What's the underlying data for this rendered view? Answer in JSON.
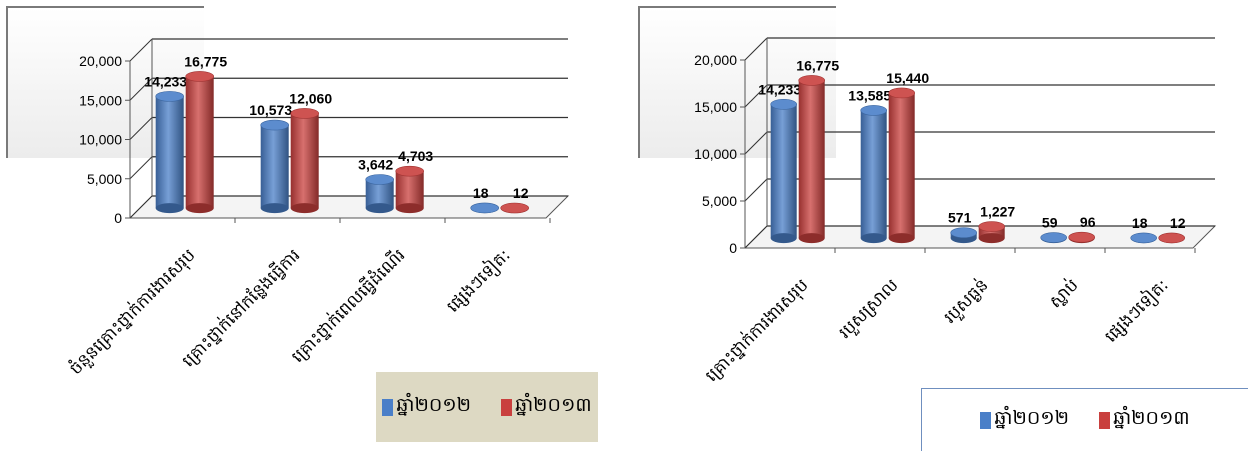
{
  "legend": {
    "series": [
      "ឆ្នាំ២០១២",
      "ឆ្នាំ២០១៣"
    ]
  },
  "colors": {
    "series_2012": "#4a7fc8",
    "series_2013": "#c9403e",
    "axis": "#555555",
    "grid": "#333333"
  },
  "chart_data": [
    {
      "type": "bar",
      "categories": [
        "ចំនួនគ្រោះថ្នាក់ការងារសរុប",
        "គ្រោះថ្នាក់នៅកន្លែងធ្វើការ",
        "គ្រោះថ្នាក់ពេលធ្វើដំណើរ",
        "ផ្សេងៗទៀត:"
      ],
      "series": [
        {
          "name": "ឆ្នាំ២០១២",
          "values": [
            14233,
            10573,
            3642,
            18
          ],
          "labels": [
            "14,233",
            "10,573",
            "3,642",
            "18"
          ]
        },
        {
          "name": "ឆ្នាំ២០១៣",
          "values": [
            16775,
            12060,
            4703,
            12
          ],
          "labels": [
            "16,775",
            "12,060",
            "4,703",
            "12"
          ]
        }
      ],
      "yticks": [
        "0",
        "5,000",
        "10,000",
        "15,000",
        "20,000"
      ],
      "ylim": [
        0,
        20000
      ],
      "grid": true,
      "legend_position": "bottom-right"
    },
    {
      "type": "bar",
      "categories": [
        "គ្រោះថ្នាក់ការងារសរុប",
        "របួសស្រាល",
        "របួសធ្ងន់",
        "ស្លាប់",
        "ផ្សេងៗទៀត:"
      ],
      "series": [
        {
          "name": "ឆ្នាំ២០១២",
          "values": [
            14233,
            13585,
            571,
            59,
            18
          ],
          "labels": [
            "14,233",
            "13,585",
            "571",
            "59",
            "18"
          ]
        },
        {
          "name": "ឆ្នាំ២០១៣",
          "values": [
            16775,
            15440,
            1227,
            96,
            12
          ],
          "labels": [
            "16,775",
            "15,440",
            "1,227",
            "96",
            "12"
          ]
        }
      ],
      "yticks": [
        "0",
        "5,000",
        "10,000",
        "15,000",
        "20,000"
      ],
      "ylim": [
        0,
        20000
      ],
      "grid": true,
      "legend_position": "bottom-right"
    }
  ]
}
